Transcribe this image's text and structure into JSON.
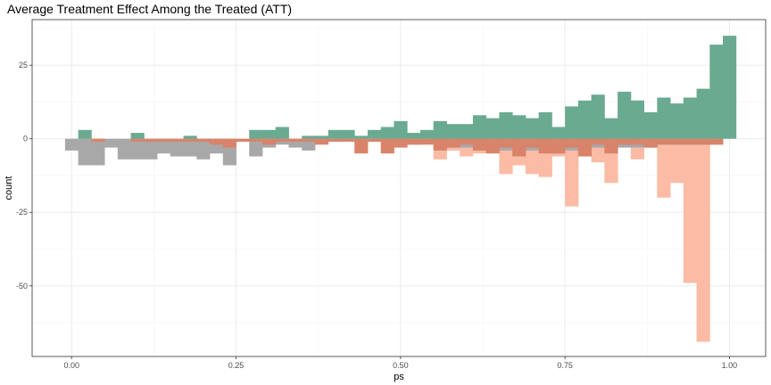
{
  "chart_data": {
    "type": "bar",
    "title": "Average Treatment Effect Among the Treated (ATT)",
    "xlabel": "ps",
    "ylabel": "count",
    "xlim": [
      -0.06,
      1.055
    ],
    "ylim": [
      -74,
      40.5
    ],
    "x_ticks": [
      0.0,
      0.25,
      0.5,
      0.75,
      1.0
    ],
    "x_tick_labels": [
      "0.00",
      "0.25",
      "0.50",
      "0.75",
      "1.00"
    ],
    "y_ticks": [
      25,
      0,
      -25,
      -50
    ],
    "y_tick_labels": [
      "25",
      "0",
      "-25",
      "-50"
    ],
    "grid": true,
    "bin_width": 0.02,
    "bin_start": -0.01,
    "colors": {
      "treated": "#6aaa90",
      "control_unweighted": "#a8a8a8",
      "control_weighted": "#d9836a",
      "control_pseudo": "#fbbba4",
      "panel_border": "#333333",
      "grid_major": "#ebebeb",
      "grid_minor": "#f5f5f5"
    },
    "series": [
      {
        "role": "treated",
        "values": [
          0,
          3,
          0,
          0,
          0,
          2,
          0,
          0,
          0,
          1,
          0,
          0,
          0,
          0,
          3,
          3,
          4,
          0,
          1,
          1,
          3,
          3,
          1,
          3,
          4,
          6,
          2,
          3,
          6,
          5,
          5,
          8,
          7,
          9,
          8,
          7,
          9,
          4,
          11,
          13,
          15,
          7,
          16,
          13,
          9,
          14,
          12,
          14,
          17,
          32,
          35
        ]
      },
      {
        "role": "control_unweighted",
        "values": [
          -4,
          -9,
          -9,
          -3,
          -7,
          -7,
          -7,
          -5,
          -6,
          -6,
          -7,
          -5,
          -9,
          0,
          -6,
          -3,
          -2,
          -3,
          -4,
          -1,
          0,
          -1,
          -2,
          0,
          -1,
          -2,
          -2,
          -1,
          -2,
          -3,
          -3,
          -4,
          -4,
          -4,
          -4,
          -4,
          -3,
          -5,
          -4,
          -3,
          -3,
          -3,
          -3,
          -3,
          -3,
          -2,
          -2,
          -2,
          -2,
          -2,
          0
        ]
      },
      {
        "role": "control_weighted",
        "values": [
          0,
          0,
          -1,
          0,
          0,
          -1,
          -1,
          -1,
          -1,
          -1,
          -1,
          -2,
          -3,
          -1,
          -1,
          -2,
          -1,
          -1,
          -1,
          -2,
          -1,
          -1,
          -5,
          -1,
          -5,
          -3,
          -2,
          -2,
          -4,
          -3,
          -2,
          -4,
          -5,
          -3,
          -6,
          -3,
          -5,
          -5,
          -3,
          -6,
          -2,
          -5,
          -2,
          -2,
          -3,
          -2,
          -2,
          -2,
          -2,
          -2,
          0
        ]
      },
      {
        "role": "control_pseudo",
        "values": [
          0,
          0,
          0,
          0,
          0,
          0,
          0,
          0,
          0,
          0,
          0,
          0,
          0,
          0,
          0,
          0,
          0,
          0,
          0,
          0,
          0,
          0,
          0,
          0,
          0,
          0,
          0,
          0,
          -7,
          -4,
          -6,
          -5,
          -4,
          -12,
          -9,
          -12,
          -13,
          -6,
          -23,
          -6,
          -8,
          -15,
          0,
          -7,
          0,
          -20,
          -15,
          -49,
          -69,
          0,
          0
        ]
      }
    ]
  }
}
